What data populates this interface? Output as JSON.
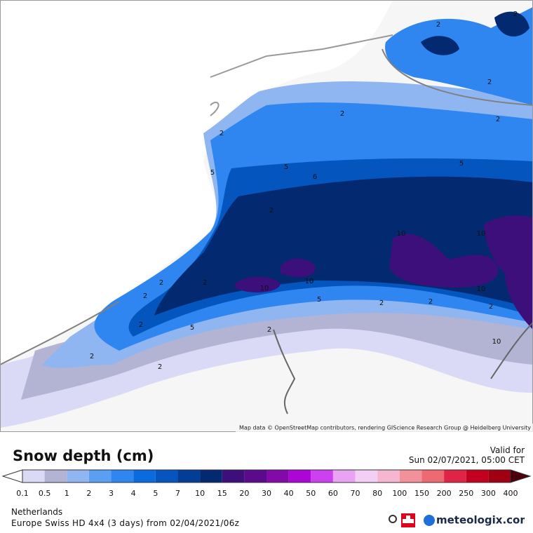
{
  "map": {
    "attribution": "Map data © OpenStreetMap contributors, rendering GIScience Research Group @ Heidelberg University",
    "contour_labels": [
      "2",
      "2",
      "2",
      "2",
      "5",
      "2",
      "5",
      "6",
      "10",
      "10",
      "10",
      "10",
      "10",
      "2",
      "5",
      "2",
      "2",
      "2",
      "2",
      "2",
      "2",
      "5",
      "2",
      "2",
      "2",
      "2",
      "5",
      "10",
      "2"
    ]
  },
  "header": {
    "title": "Snow depth (cm)",
    "valid_label": "Valid for",
    "valid_time": "Sun 02/07/2021, 05:00 CET"
  },
  "legend": {
    "ticks": [
      "0.1",
      "0.5",
      "1",
      "2",
      "3",
      "4",
      "5",
      "7",
      "10",
      "15",
      "20",
      "30",
      "40",
      "50",
      "60",
      "70",
      "80",
      "100",
      "150",
      "200",
      "250",
      "300",
      "400"
    ],
    "colors": [
      "#dadaf6",
      "#b3b3d3",
      "#8fb6f0",
      "#5a9ff2",
      "#2f86f0",
      "#0a6bdf",
      "#0455bd",
      "#033e96",
      "#032a70",
      "#3c0f7a",
      "#5c0a8c",
      "#820aa8",
      "#ac06d6",
      "#cd40ef",
      "#e8a3f3",
      "#f3cff6",
      "#f5b6cf",
      "#f1929b",
      "#ed6a73",
      "#e02447",
      "#c3001f",
      "#a00012"
    ]
  },
  "footer": {
    "region": "Netherlands",
    "model": "Europe Swiss HD 4x4 (3 days) from 02/04/2021/06z",
    "brand": "meteologix.com"
  }
}
